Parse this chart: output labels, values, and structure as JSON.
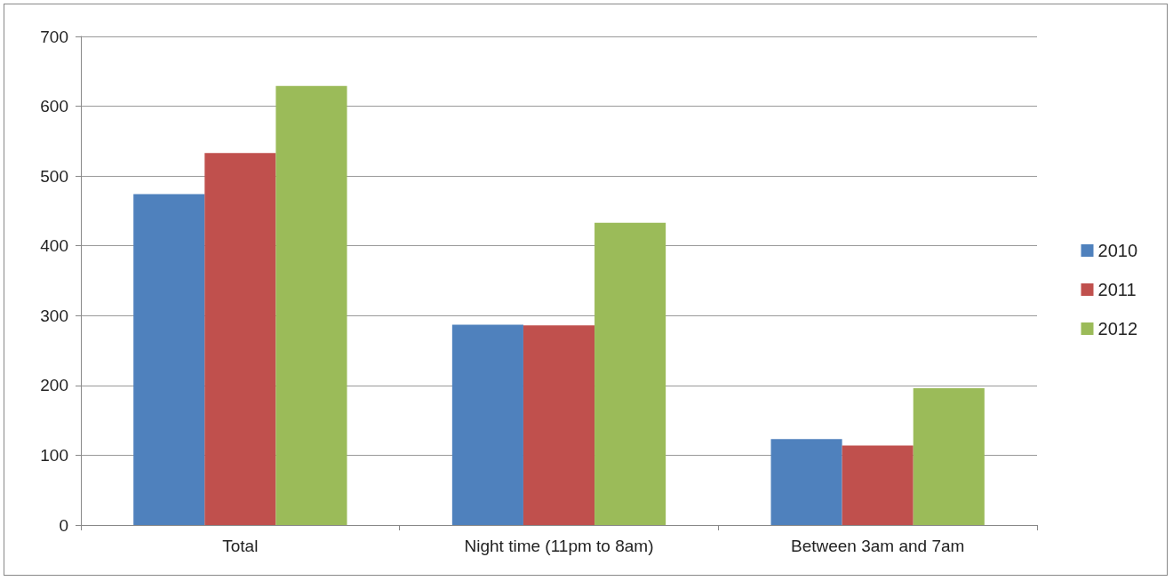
{
  "chart_data": {
    "type": "bar",
    "categories": [
      "Total",
      "Night time (11pm to 8am)",
      "Between 3am and 7am"
    ],
    "series": [
      {
        "name": "2010",
        "color": "#4f81bd",
        "values": [
          474,
          287,
          123
        ]
      },
      {
        "name": "2011",
        "color": "#c0504d",
        "values": [
          533,
          286,
          114
        ]
      },
      {
        "name": "2012",
        "color": "#9bbb59",
        "values": [
          629,
          433,
          196
        ]
      }
    ],
    "ylim": [
      0,
      700
    ],
    "yticks": [
      0,
      100,
      200,
      300,
      400,
      500,
      600,
      700
    ],
    "grid": "y",
    "legend": "right"
  }
}
